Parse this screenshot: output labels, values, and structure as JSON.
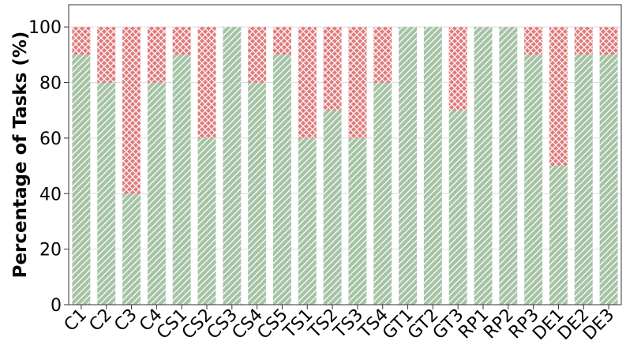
{
  "chart_data": {
    "type": "bar",
    "stacked": true,
    "title": "",
    "xlabel": "",
    "ylabel": "Percentage of Tasks (%)",
    "ylim": [
      0,
      108
    ],
    "yticks": [
      0,
      20,
      40,
      60,
      80,
      100
    ],
    "grid": true,
    "categories": [
      "C1",
      "C2",
      "C3",
      "C4",
      "CS1",
      "CS2",
      "CS3",
      "CS4",
      "CS5",
      "TS1",
      "TS2",
      "TS3",
      "TS4",
      "GT1",
      "GT2",
      "GT3",
      "RP1",
      "RP2",
      "RP3",
      "DE1",
      "DE2",
      "DE3"
    ],
    "series": [
      {
        "color": "#a6c3a6",
        "pattern": "diagonal-hatch",
        "values": [
          90,
          80,
          40,
          80,
          90,
          60,
          100,
          80,
          90,
          60,
          70,
          60,
          80,
          100,
          100,
          70,
          100,
          100,
          90,
          50,
          90,
          90
        ]
      },
      {
        "color": "#e07b7b",
        "pattern": "crosshatch",
        "values": [
          10,
          20,
          60,
          20,
          10,
          40,
          0,
          20,
          10,
          40,
          30,
          40,
          20,
          0,
          0,
          30,
          0,
          0,
          10,
          50,
          10,
          10
        ]
      }
    ]
  }
}
